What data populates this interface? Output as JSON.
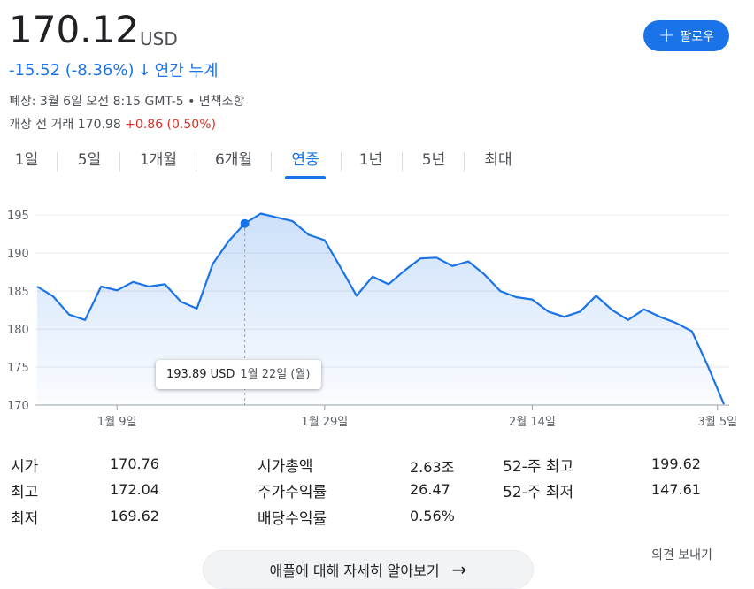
{
  "quote": {
    "price": "170.12",
    "currency": "USD",
    "change": "-15.52 (-8.36%)",
    "change_arrow": "↓",
    "period_label": "연간 누계",
    "closed_note": "폐장: 3월 6일 오전 8:15 GMT-5 • 면책조항",
    "premarket_label": "개장 전 거래 170.98",
    "premarket_change": "+0.86 (0.50%)"
  },
  "follow": {
    "icon": "plus-icon",
    "label": "팔로우"
  },
  "tabs": [
    {
      "label": "1일"
    },
    {
      "label": "5일"
    },
    {
      "label": "1개월"
    },
    {
      "label": "6개월"
    },
    {
      "label": "연중"
    },
    {
      "label": "1년"
    },
    {
      "label": "5년"
    },
    {
      "label": "최대"
    }
  ],
  "active_tab": "연중",
  "tooltip": {
    "price": "193.89 USD",
    "date": "1월 22일 (월)"
  },
  "chart_data": {
    "type": "area",
    "y_ticks": [
      "195",
      "190",
      "185",
      "180",
      "175",
      "170"
    ],
    "x_ticks": [
      "1월 9일",
      "1월 29일",
      "2월 14일",
      "3월 5일"
    ],
    "ylim": [
      170,
      197
    ],
    "grid": true,
    "line_color": "#1a73e8",
    "highlight_index": 13,
    "values": [
      185.6,
      184.3,
      181.9,
      181.2,
      185.6,
      185.1,
      186.2,
      185.6,
      185.9,
      183.6,
      182.7,
      188.6,
      191.6,
      193.89,
      195.2,
      194.7,
      194.2,
      192.4,
      191.7,
      188.1,
      184.4,
      186.9,
      185.9,
      187.7,
      189.3,
      189.4,
      188.3,
      188.9,
      187.2,
      185.0,
      184.2,
      183.9,
      182.3,
      181.6,
      182.3,
      184.4,
      182.5,
      181.2,
      182.6,
      181.6,
      180.8,
      179.7,
      175.1,
      170.12
    ]
  },
  "stats": [
    {
      "label": "시가",
      "value": "170.76"
    },
    {
      "label": "최고",
      "value": "172.04"
    },
    {
      "label": "최저",
      "value": "169.62"
    },
    {
      "label": "시가총액",
      "value": "2.63조"
    },
    {
      "label": "주가수익률",
      "value": "26.47"
    },
    {
      "label": "배당수익률",
      "value": "0.56%"
    },
    {
      "label": "52-주 최고",
      "value": "199.62"
    },
    {
      "label": "52-주 최저",
      "value": "147.61"
    }
  ],
  "feedback_label": "의견 보내기",
  "learn_more": {
    "label": "애플에 대해 자세히 알아보기",
    "icon": "arrow-right-icon",
    "arrow": "→"
  }
}
